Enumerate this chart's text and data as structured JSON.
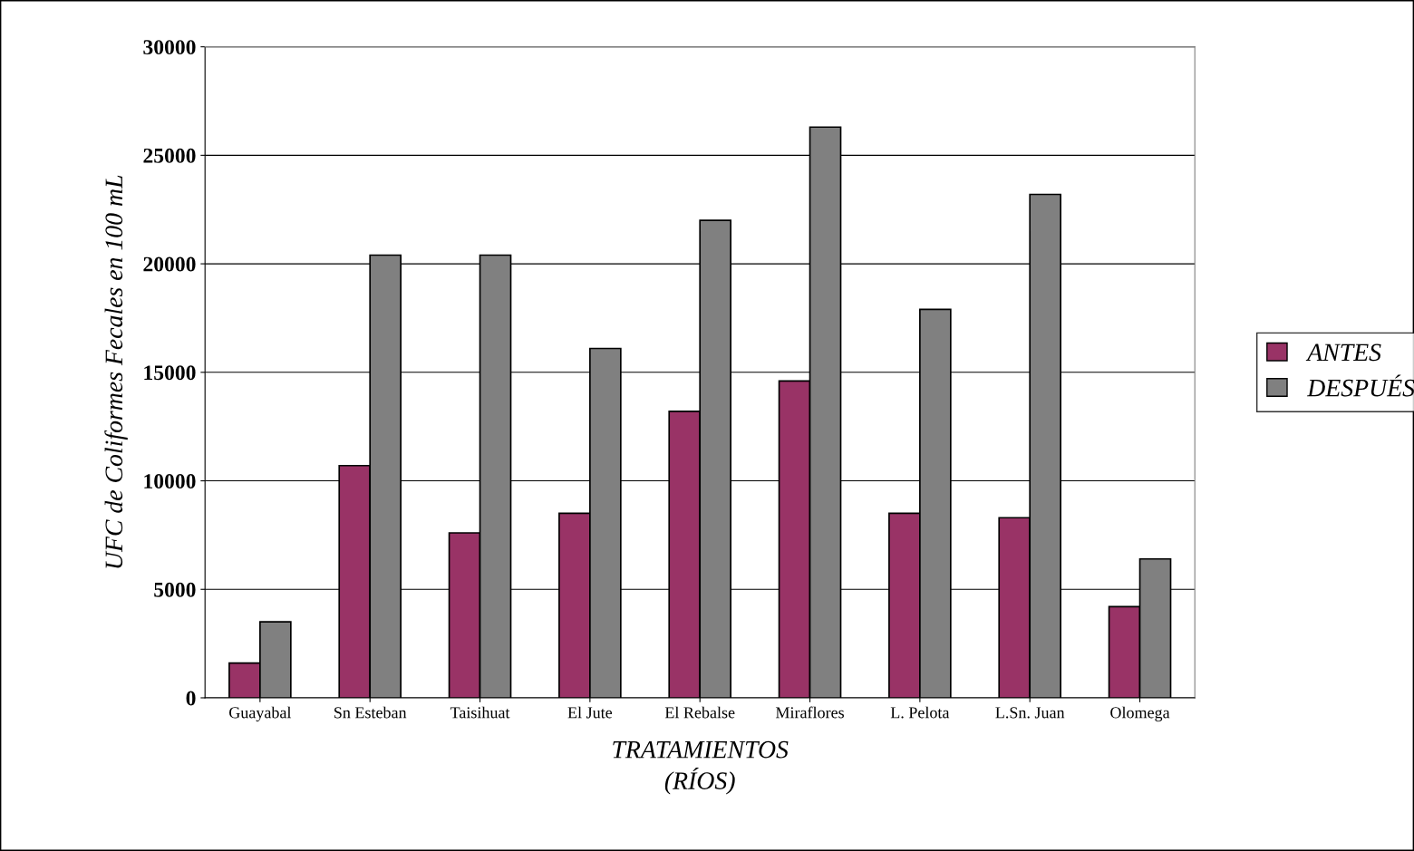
{
  "chart_data": {
    "type": "bar",
    "xlabel": "TRATAMIENTOS\n(RÍOS)",
    "ylabel": "UFC de Coliformes Fecales en 100 mL",
    "categories": [
      "Guayabal",
      "Sn Esteban",
      "Taisihuat",
      "El Jute",
      "El Rebalse",
      "Miraflores",
      "L. Pelota",
      "L.Sn. Juan",
      "Olomega"
    ],
    "series": [
      {
        "name": "ANTES",
        "color": "#993366",
        "values": [
          1600,
          10700,
          7600,
          8500,
          13200,
          14600,
          8500,
          8300,
          4200
        ]
      },
      {
        "name": "DESPUÉS",
        "color": "#808080",
        "values": [
          3500,
          20400,
          20400,
          16100,
          22000,
          26300,
          17900,
          23200,
          6400
        ]
      }
    ],
    "ylim": [
      0,
      30000
    ],
    "yticks": [
      0,
      5000,
      10000,
      15000,
      20000,
      25000,
      30000
    ],
    "grid": "y",
    "legend": "right"
  }
}
